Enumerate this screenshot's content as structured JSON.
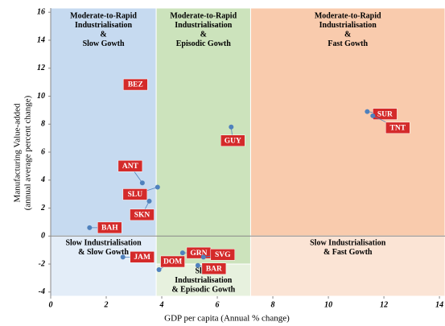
{
  "chart_data": {
    "type": "scatter",
    "xlabel": "GDP per capita (Annual % change)",
    "ylabel": [
      "Manufacturing Value-added",
      "(annual average percent change)"
    ],
    "xlim": [
      0,
      14.2
    ],
    "ylim": [
      -4.3,
      16.3
    ],
    "xticks": [
      0,
      2,
      4,
      6,
      8,
      10,
      12,
      14
    ],
    "yticks": [
      -4,
      -2,
      0,
      2,
      4,
      6,
      8,
      10,
      12,
      14,
      16
    ],
    "regions": [
      {
        "label": [
          "Moderate-to-Rapid",
          "Industrialisation",
          "&",
          "Slow Gowth"
        ],
        "x": [
          0,
          3.8
        ],
        "y": [
          0,
          16.3
        ],
        "color": "#c6daf0"
      },
      {
        "label": [
          "Moderate-to-Rapid",
          "Industrialisation",
          "&",
          "Episodic  Gowth"
        ],
        "x": [
          3.8,
          7.2
        ],
        "y": [
          -2,
          16.3
        ],
        "color": "#cce3bc"
      },
      {
        "label": [
          "Moderate-to-Rapid",
          "Industrialisation",
          "&",
          "Fast Gowth"
        ],
        "x": [
          7.2,
          14.2
        ],
        "y": [
          0,
          16.3
        ],
        "color": "#f9cbad"
      },
      {
        "label": [
          "Slow Industrialisation",
          "& Slow Gowth"
        ],
        "x": [
          0,
          3.8
        ],
        "y": [
          -4.3,
          0
        ],
        "color": "#e3edf8"
      },
      {
        "label": [
          "Slow",
          "Industrialisation",
          "& Episodic Gowth"
        ],
        "x": [
          3.8,
          7.2
        ],
        "y": [
          -4.3,
          -2
        ],
        "color": "#e7f1de"
      },
      {
        "label": [
          "Slow Industrialisation",
          "& Fast Gowth"
        ],
        "x": [
          7.2,
          14.2
        ],
        "y": [
          -4.3,
          0
        ],
        "color": "#fbe4d5"
      }
    ],
    "labels": [
      "BAH",
      "BEZ",
      "ANT",
      "SLU",
      "SKN",
      "GUY",
      "SUR",
      "TNT",
      "JAM",
      "DOM",
      "GRN",
      "SVG",
      "BAR"
    ],
    "x": [
      1.4,
      3.4,
      3.3,
      3.85,
      3.55,
      6.5,
      11.4,
      11.6,
      2.6,
      3.9,
      4.75,
      5.5,
      5.3
    ],
    "values": [
      0.6,
      10.6,
      3.8,
      3.5,
      2.5,
      7.8,
      8.9,
      8.6,
      -1.5,
      -2.4,
      -1.2,
      -1.5,
      -2.1
    ],
    "color": "#4f81bd",
    "label_color": "#d42a2a"
  }
}
